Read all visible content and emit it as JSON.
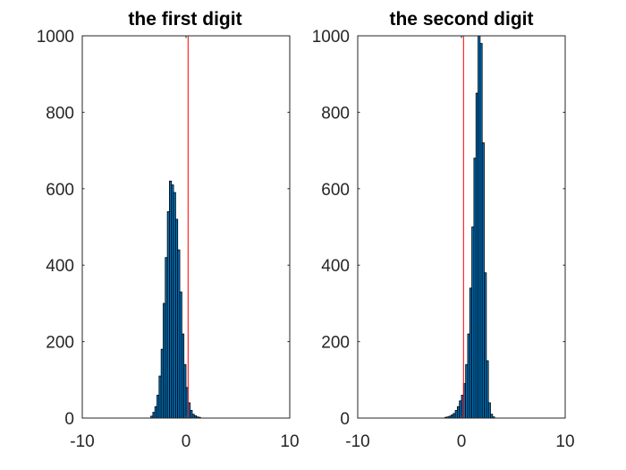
{
  "chart_data": [
    {
      "type": "bar",
      "title": "the first digit",
      "xlabel": "",
      "ylabel": "",
      "xlim": [
        -10,
        10
      ],
      "ylim": [
        0,
        1000
      ],
      "xticks": [
        -10,
        0,
        10
      ],
      "yticks": [
        0,
        200,
        400,
        600,
        800,
        1000
      ],
      "bar_width": 0.2,
      "reference_line_x": 0.2,
      "colors": {
        "bar_fill": "#0072BD",
        "bar_edge": "#000000",
        "reference_line": "#ff0000"
      },
      "bin_centers": [
        -3.3,
        -3.1,
        -2.9,
        -2.7,
        -2.5,
        -2.3,
        -2.1,
        -1.9,
        -1.7,
        -1.5,
        -1.3,
        -1.1,
        -0.9,
        -0.7,
        -0.5,
        -0.3,
        -0.1,
        0.1,
        0.3,
        0.5,
        0.7,
        0.9,
        1.1,
        1.3
      ],
      "values": [
        5,
        15,
        30,
        60,
        110,
        180,
        300,
        420,
        540,
        620,
        610,
        590,
        520,
        440,
        330,
        220,
        140,
        80,
        40,
        20,
        10,
        6,
        3,
        2
      ]
    },
    {
      "type": "bar",
      "title": "the second digit",
      "xlabel": "",
      "ylabel": "",
      "xlim": [
        -10,
        10
      ],
      "ylim": [
        0,
        1000
      ],
      "xticks": [
        -10,
        0,
        10
      ],
      "yticks": [
        0,
        200,
        400,
        600,
        800,
        1000
      ],
      "bar_width": 0.2,
      "reference_line_x": 0.2,
      "colors": {
        "bar_fill": "#0072BD",
        "bar_edge": "#000000",
        "reference_line": "#ff0000"
      },
      "bin_centers": [
        -1.5,
        -1.3,
        -1.1,
        -0.9,
        -0.7,
        -0.5,
        -0.3,
        -0.1,
        0.1,
        0.3,
        0.5,
        0.7,
        0.9,
        1.1,
        1.3,
        1.5,
        1.7,
        1.9,
        2.1,
        2.3,
        2.5,
        2.7,
        2.9,
        3.1
      ],
      "values": [
        2,
        3,
        5,
        8,
        12,
        20,
        30,
        45,
        60,
        90,
        140,
        220,
        340,
        500,
        680,
        850,
        1000,
        980,
        720,
        380,
        150,
        40,
        10,
        3
      ]
    }
  ]
}
